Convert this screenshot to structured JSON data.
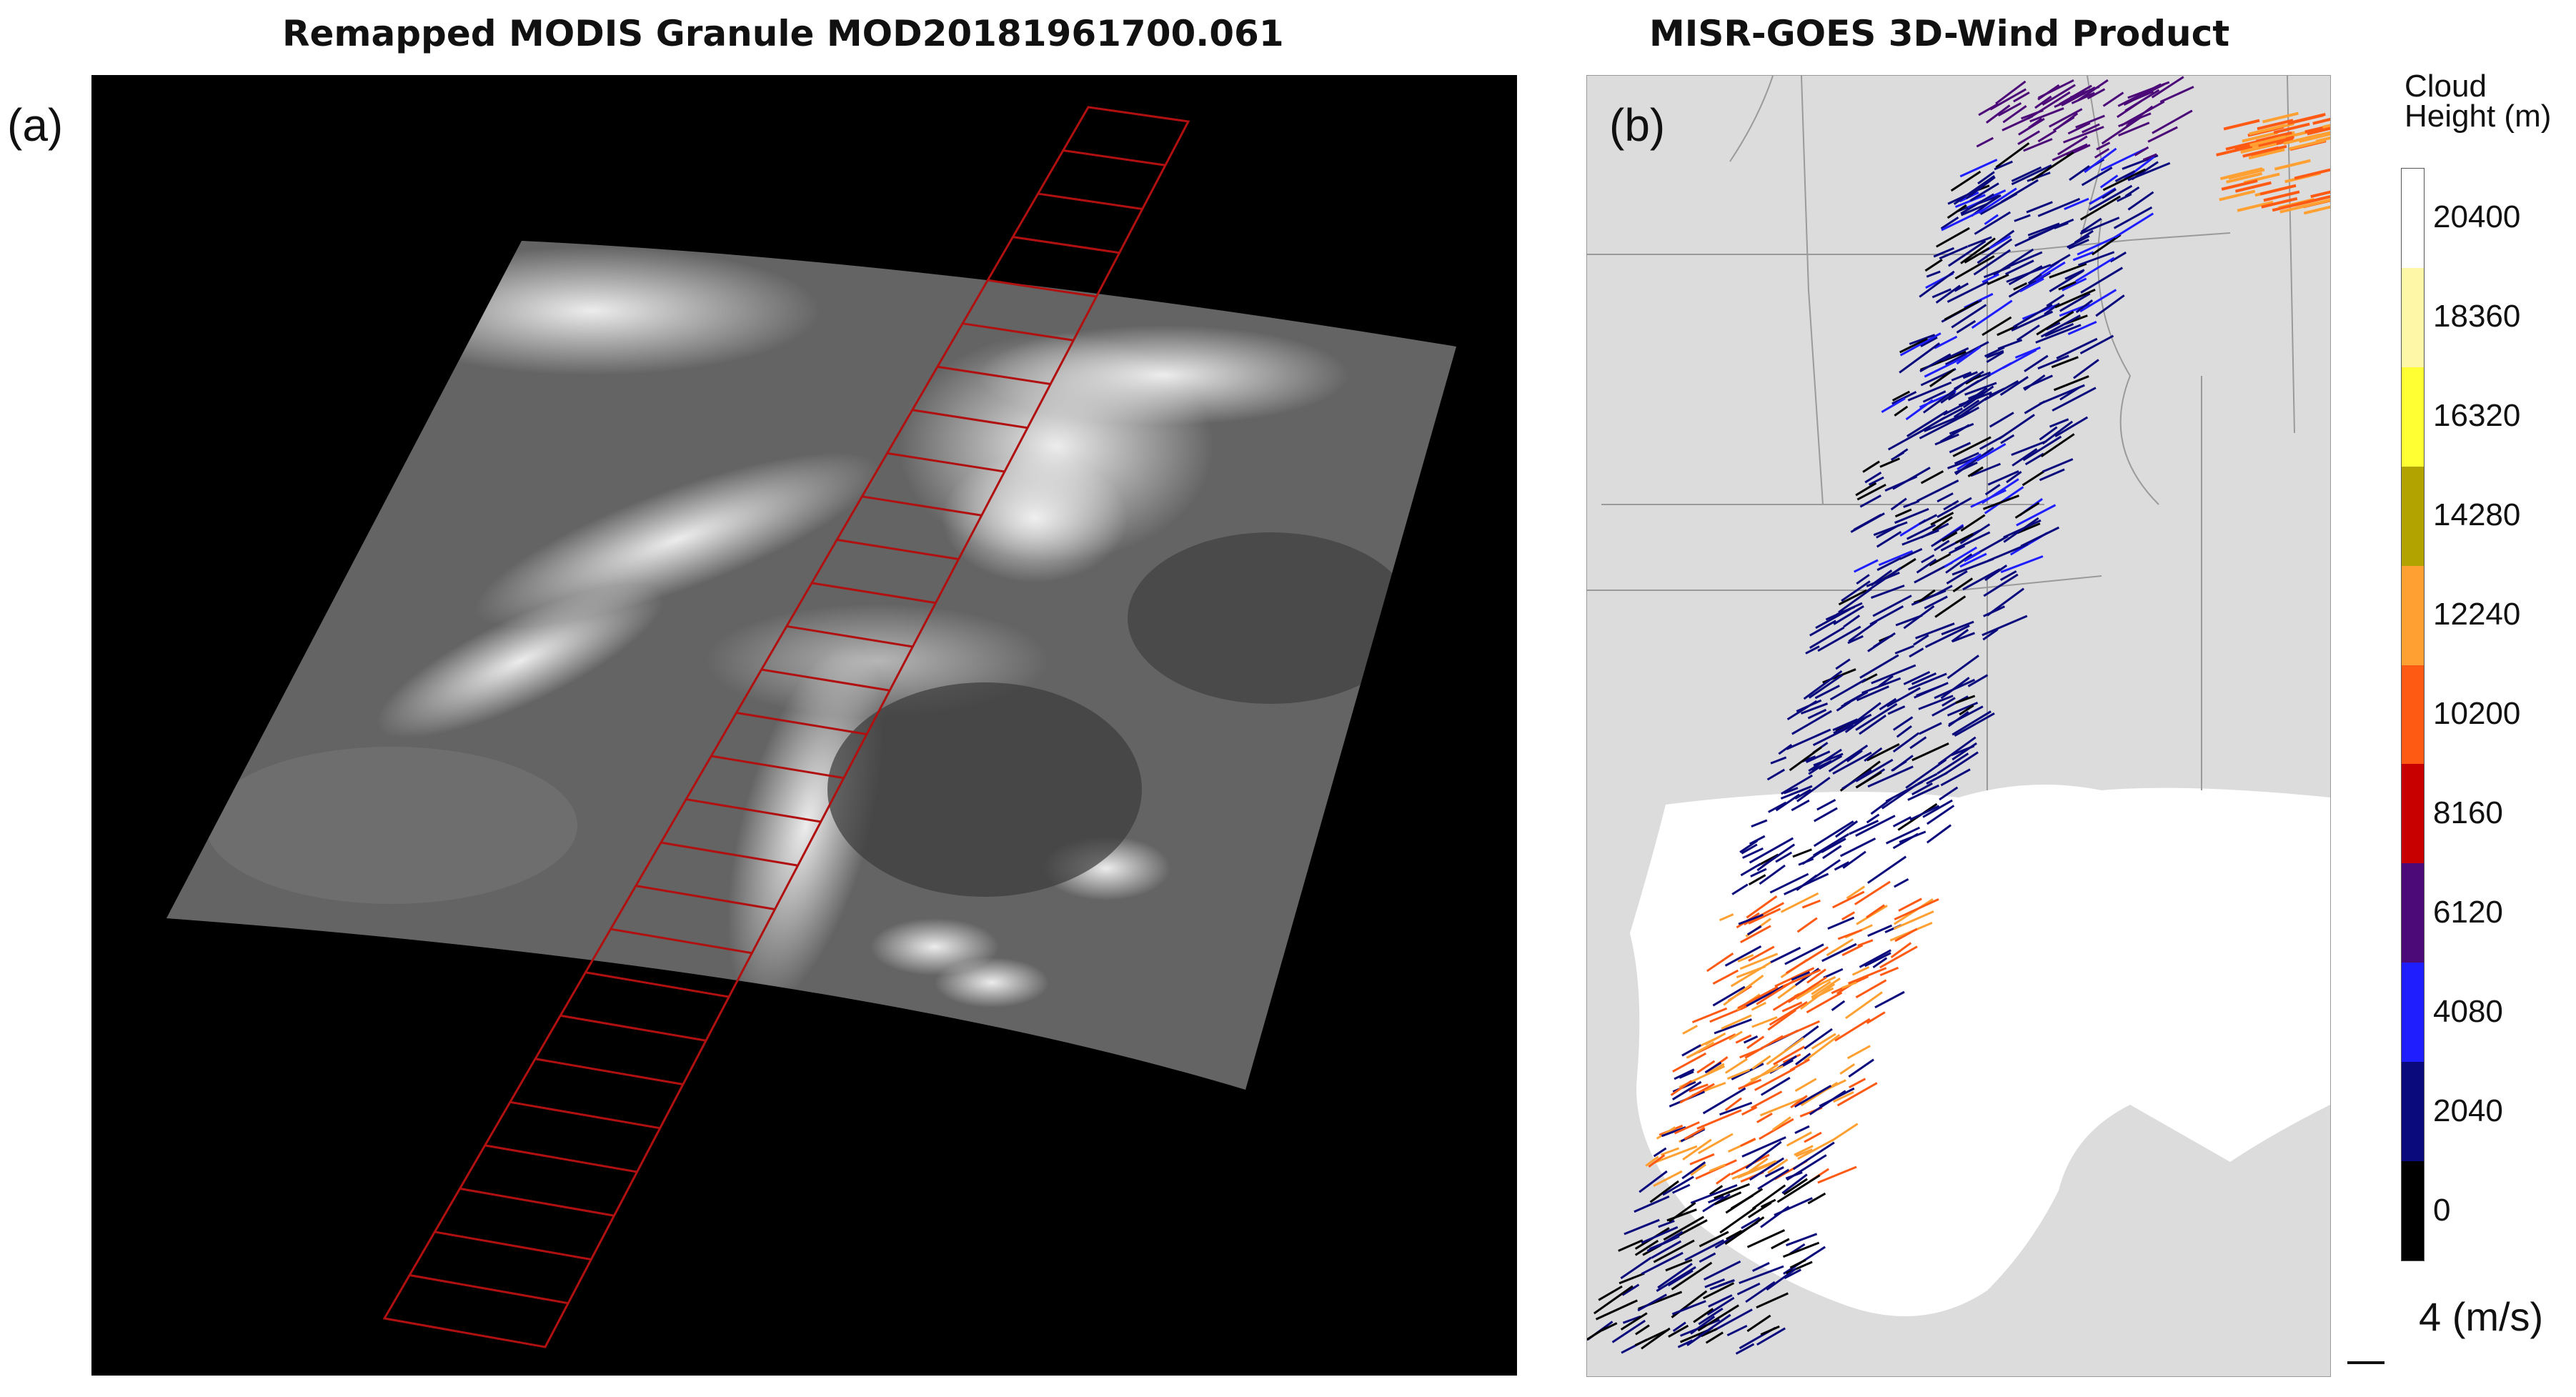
{
  "panels": {
    "a": {
      "title": "Remapped MODIS Granule MOD20181961700.061",
      "letter": "(a)"
    },
    "b": {
      "title": "MISR-GOES 3D-Wind Product",
      "letter": "(b)"
    }
  },
  "colorbar": {
    "title_line1": "Cloud",
    "title_line2": "Height (m)",
    "ticks": [
      "20400",
      "18360",
      "16320",
      "14280",
      "12240",
      "10200",
      "8160",
      "6120",
      "4080",
      "2040",
      "0"
    ],
    "bins": [
      {
        "color": "#ffffff"
      },
      {
        "color": "#fff7a8"
      },
      {
        "color": "#ffff33"
      },
      {
        "color": "#b3a300"
      },
      {
        "color": "#ffa033"
      },
      {
        "color": "#ff5a14"
      },
      {
        "color": "#c80000"
      },
      {
        "color": "#4b0a78"
      },
      {
        "color": "#1e1eff"
      },
      {
        "color": "#0a0a7d"
      },
      {
        "color": "#000000"
      }
    ]
  },
  "scale": {
    "label": "4 (m/s)"
  },
  "colors": {
    "swath_red": "#b01010",
    "land": "#dcdcdc",
    "water": "#ffffff",
    "wind_blue": "#0a0a7d",
    "wind_orange": "#ff7a1e"
  }
}
